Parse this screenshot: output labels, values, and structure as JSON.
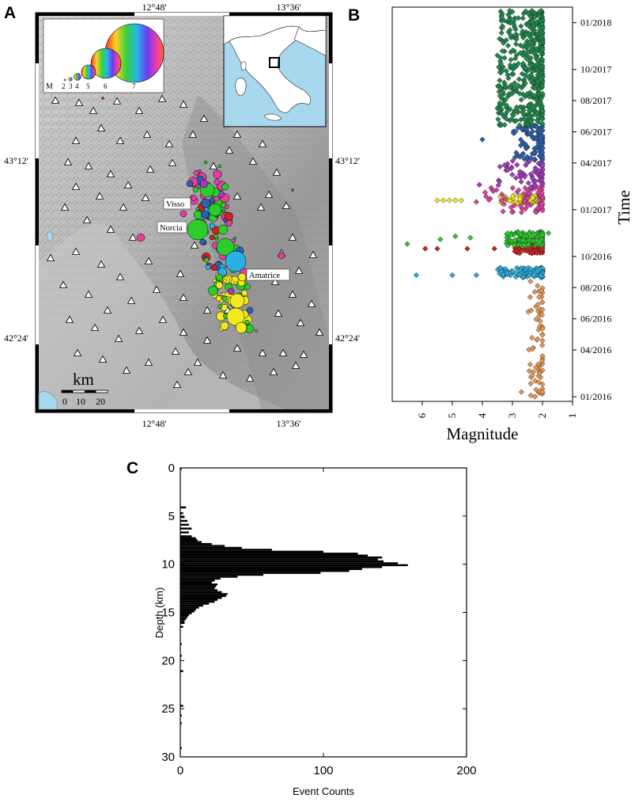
{
  "panels": {
    "a": {
      "letter": "A",
      "lon_ticks": [
        "12°48'",
        "13°36'"
      ],
      "lat_ticks": [
        "43°12'",
        "42°24'"
      ],
      "towns": [
        "Visso",
        "Norcia",
        "Amatrice"
      ],
      "legend": {
        "prefix": "M",
        "magnitudes": [
          "2",
          "3",
          "4",
          "5",
          "6",
          "7"
        ]
      },
      "scalebar": {
        "unit": "km",
        "ticks": [
          "0",
          "10",
          "20"
        ]
      }
    },
    "b": {
      "letter": "B"
    },
    "c": {
      "letter": "C"
    }
  },
  "colors": {
    "green_2017": "#1e8a4c",
    "blue": "#2f5fb0",
    "purple": "#a23bc0",
    "magenta": "#e040a0",
    "yellow": "#f2ea20",
    "green_bright": "#2ccc2c",
    "red": "#d42020",
    "cyan": "#2ab0e0",
    "orange": "#e89850",
    "histogram": "#000000"
  },
  "chart_data": [
    {
      "type": "scatter",
      "panel": "B",
      "xlabel": "Magnitude",
      "ylabel": "Time",
      "xlim": [
        7,
        1
      ],
      "x_ticks": [
        6,
        5,
        4,
        3,
        2,
        1
      ],
      "y_tick_labels": [
        "01/2016",
        "04/2016",
        "06/2016",
        "08/2016",
        "10/2016",
        "01/2017",
        "04/2017",
        "06/2017",
        "08/2017",
        "10/2017",
        "01/2018"
      ],
      "y_tick_months": [
        0,
        3,
        5,
        7,
        9,
        12,
        15,
        17,
        19,
        21,
        24
      ],
      "ylim_months": [
        -0.3,
        25.0
      ],
      "series": [
        {
          "color": "orange",
          "time_range_months": [
            0.0,
            7.6
          ],
          "mag_range": [
            2.0,
            2.5
          ],
          "points": [
            [
              2.4,
              7.4
            ],
            [
              2.0,
              0.3
            ],
            [
              2.3,
              1.6
            ],
            [
              2.7,
              0.3
            ]
          ]
        },
        {
          "color": "cyan",
          "time_range_months": [
            7.65,
            8.3
          ],
          "mag_range": [
            2.0,
            3.5
          ],
          "points": [
            [
              6.2,
              7.8
            ],
            [
              5.0,
              7.8
            ],
            [
              4.2,
              7.8
            ]
          ]
        },
        {
          "color": "red",
          "time_range_months": [
            9.2,
            9.8
          ],
          "mag_range": [
            2.0,
            3.0
          ],
          "points": [
            [
              5.9,
              9.5
            ],
            [
              5.5,
              9.5
            ],
            [
              4.5,
              9.5
            ],
            [
              3.6,
              9.5
            ]
          ]
        },
        {
          "color": "green_bright",
          "time_range_months": [
            9.7,
            10.6
          ],
          "mag_range": [
            2.0,
            3.2
          ],
          "points": [
            [
              6.5,
              9.8
            ],
            [
              5.4,
              10.1
            ],
            [
              4.9,
              10.3
            ],
            [
              4.4,
              10.2
            ],
            [
              1.8,
              10.5
            ]
          ]
        },
        {
          "color": "yellow",
          "time_range_months": [
            12.4,
            12.9
          ],
          "mag_range": [
            2.0,
            3.5
          ],
          "points": [
            [
              5.5,
              12.6
            ],
            [
              5.3,
              12.6
            ],
            [
              5.1,
              12.6
            ],
            [
              4.9,
              12.6
            ],
            [
              4.7,
              12.6
            ]
          ]
        },
        {
          "color": "magenta",
          "time_range_months": [
            11.8,
            13.5
          ],
          "mag_range": [
            2.0,
            4.0
          ],
          "points": [
            [
              4.2,
              12.5
            ]
          ]
        },
        {
          "color": "purple",
          "time_range_months": [
            13.4,
            15.2
          ],
          "mag_range": [
            2.0,
            3.5
          ],
          "points": [
            [
              4.1,
              13.6
            ]
          ]
        },
        {
          "color": "blue",
          "time_range_months": [
            15.2,
            17.4
          ],
          "mag_range": [
            2.0,
            3.0
          ],
          "points": [
            [
              4.0,
              16.5
            ]
          ]
        },
        {
          "color": "green_2017",
          "time_range_months": [
            17.4,
            24.8
          ],
          "mag_range": [
            2.0,
            3.5
          ],
          "points": [
            [
              3.5,
              21.9
            ],
            [
              3.3,
              22.7
            ],
            [
              3.0,
              24.7
            ]
          ]
        }
      ]
    },
    {
      "type": "bar",
      "panel": "C",
      "orientation": "horizontal",
      "xlabel": "Event Counts",
      "ylabel": "Depth (km)",
      "xlim": [
        0,
        200
      ],
      "ylim": [
        0,
        30
      ],
      "x_ticks": [
        0,
        100,
        200
      ],
      "y_ticks": [
        0,
        5,
        10,
        15,
        20,
        25,
        30
      ],
      "bin_size_km": 0.2,
      "bins": [
        [
          0.0,
          1
        ],
        [
          4.0,
          4
        ],
        [
          4.6,
          2
        ],
        [
          5.0,
          3
        ],
        [
          5.4,
          5
        ],
        [
          5.8,
          6
        ],
        [
          6.2,
          8
        ],
        [
          6.6,
          6
        ],
        [
          7.0,
          8
        ],
        [
          7.2,
          11
        ],
        [
          7.4,
          12
        ],
        [
          7.6,
          15
        ],
        [
          7.8,
          22
        ],
        [
          8.0,
          31
        ],
        [
          8.2,
          43
        ],
        [
          8.4,
          64
        ],
        [
          8.6,
          100
        ],
        [
          8.8,
          124
        ],
        [
          9.0,
          131
        ],
        [
          9.2,
          141
        ],
        [
          9.4,
          138
        ],
        [
          9.6,
          142
        ],
        [
          9.8,
          152
        ],
        [
          10.0,
          159
        ],
        [
          10.2,
          141
        ],
        [
          10.4,
          127
        ],
        [
          10.6,
          118
        ],
        [
          10.8,
          98
        ],
        [
          11.0,
          58
        ],
        [
          11.2,
          40
        ],
        [
          11.4,
          28
        ],
        [
          11.6,
          24
        ],
        [
          11.8,
          22
        ],
        [
          12.0,
          26
        ],
        [
          12.2,
          25
        ],
        [
          12.4,
          24
        ],
        [
          12.6,
          26
        ],
        [
          12.8,
          29
        ],
        [
          13.0,
          33
        ],
        [
          13.2,
          32
        ],
        [
          13.4,
          29
        ],
        [
          13.6,
          26
        ],
        [
          13.8,
          24
        ],
        [
          14.0,
          20
        ],
        [
          14.2,
          16
        ],
        [
          14.4,
          13
        ],
        [
          14.6,
          11
        ],
        [
          14.8,
          10
        ],
        [
          15.0,
          8
        ],
        [
          15.2,
          6
        ],
        [
          15.4,
          5
        ],
        [
          15.6,
          4
        ],
        [
          15.8,
          3
        ],
        [
          16.0,
          3
        ],
        [
          16.4,
          2
        ],
        [
          18.2,
          1
        ],
        [
          19.4,
          1
        ],
        [
          21.0,
          2
        ],
        [
          24.6,
          2
        ],
        [
          25.6,
          1
        ],
        [
          26.4,
          1
        ],
        [
          29.0,
          1
        ]
      ]
    }
  ]
}
